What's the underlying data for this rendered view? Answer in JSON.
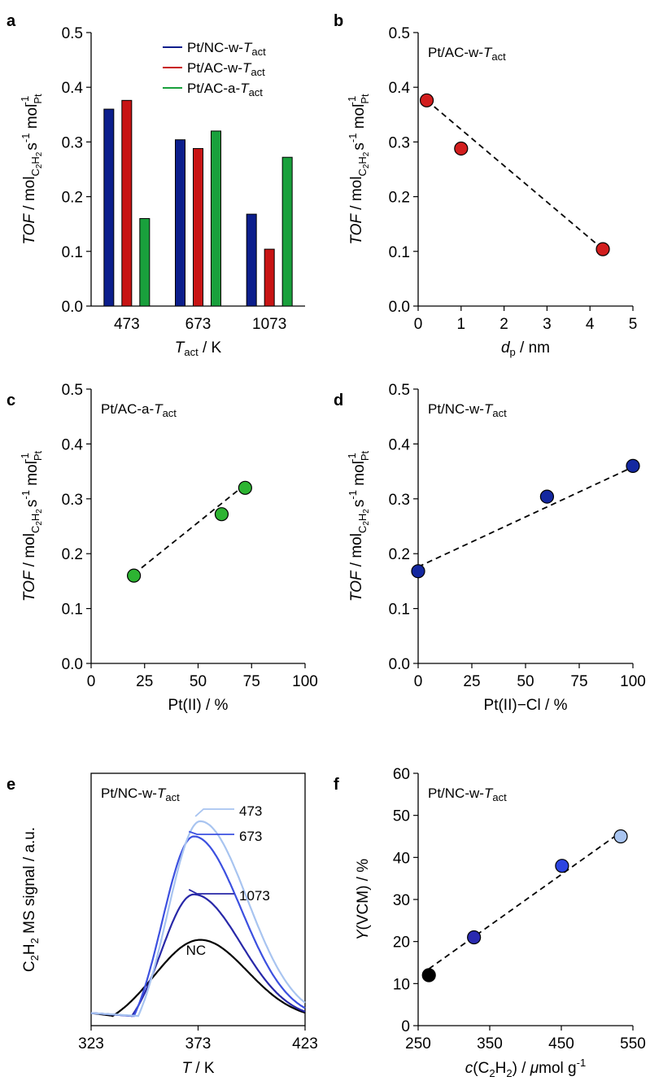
{
  "figure": {
    "panels": [
      "a",
      "b",
      "c",
      "d",
      "e",
      "f"
    ]
  },
  "chart_data": [
    {
      "panel": "a",
      "type": "bar",
      "categories": [
        "473",
        "673",
        "1073"
      ],
      "series": [
        {
          "name": "Pt/NC-w-T_act",
          "color": "#0c1e8c",
          "values": [
            0.36,
            0.304,
            0.168
          ]
        },
        {
          "name": "Pt/AC-w-T_act",
          "color": "#c81414",
          "values": [
            0.376,
            0.288,
            0.104
          ]
        },
        {
          "name": "Pt/AC-a-T_act",
          "color": "#19a03c",
          "values": [
            0.16,
            0.32,
            0.272
          ]
        }
      ],
      "ylim": [
        0,
        0.5
      ],
      "yticks": [
        "0.0",
        "0.1",
        "0.2",
        "0.3",
        "0.4",
        "0.5"
      ],
      "xlabel": "T_act / K",
      "ylabel": "TOF / mol_C2H2 s^-1 mol_Pt^-1",
      "legend_position": "top-right"
    },
    {
      "panel": "b",
      "type": "scatter",
      "title": "Pt/AC-w-T_act",
      "x": [
        0.2,
        1.0,
        4.3
      ],
      "y": [
        0.376,
        0.288,
        0.104
      ],
      "marker_color": "#d21e1e",
      "fit_line": {
        "x": [
          0.2,
          4.3
        ],
        "y": [
          0.376,
          0.104
        ],
        "style": "dashed"
      },
      "xlim": [
        0,
        5
      ],
      "ylim": [
        0,
        0.5
      ],
      "xticks": [
        "0",
        "1",
        "2",
        "3",
        "4",
        "5"
      ],
      "yticks": [
        "0.0",
        "0.1",
        "0.2",
        "0.3",
        "0.4",
        "0.5"
      ],
      "xlabel": "d_p / nm",
      "ylabel": "TOF / mol_C2H2 s^-1 mol_Pt^-1"
    },
    {
      "panel": "c",
      "type": "scatter",
      "title": "Pt/AC-a-T_act",
      "x": [
        20,
        61,
        72
      ],
      "y": [
        0.16,
        0.272,
        0.32
      ],
      "marker_color": "#2db432",
      "fit_line": {
        "x": [
          20,
          72
        ],
        "y": [
          0.163,
          0.326
        ],
        "style": "dashed"
      },
      "xlim": [
        0,
        100
      ],
      "ylim": [
        0,
        0.5
      ],
      "xticks": [
        "0",
        "25",
        "50",
        "75",
        "100"
      ],
      "yticks": [
        "0.0",
        "0.1",
        "0.2",
        "0.3",
        "0.4",
        "0.5"
      ],
      "xlabel": "Pt(II) / %",
      "ylabel": "TOF / mol_C2H2 s^-1 mol_Pt^-1"
    },
    {
      "panel": "d",
      "type": "scatter",
      "title": "Pt/NC-w-T_act",
      "x": [
        0,
        60,
        100
      ],
      "y": [
        0.168,
        0.304,
        0.36
      ],
      "marker_color": "#1428a0",
      "fit_line": {
        "x": [
          0,
          100
        ],
        "y": [
          0.176,
          0.358
        ],
        "style": "dashed"
      },
      "xlim": [
        0,
        100
      ],
      "ylim": [
        0,
        0.5
      ],
      "xticks": [
        "0",
        "25",
        "50",
        "75",
        "100"
      ],
      "yticks": [
        "0.0",
        "0.1",
        "0.2",
        "0.3",
        "0.4",
        "0.5"
      ],
      "xlabel": "Pt(II)−Cl / %",
      "ylabel": "TOF / mol_C2H2 s^-1 mol_Pt^-1"
    },
    {
      "panel": "e",
      "type": "line",
      "title": "Pt/NC-w-T_act",
      "xlim": [
        323,
        423
      ],
      "xticks": [
        "323",
        "373",
        "423"
      ],
      "xlabel": "T / K",
      "ylabel": "C2H2 MS signal / a.u.",
      "baseline": 0.05,
      "series": [
        {
          "name": "473",
          "color": "#a8c4f0",
          "peak_x": 374,
          "peak_height": 0.81,
          "onset_x": 345
        },
        {
          "name": "673",
          "color": "#3c50e0",
          "peak_x": 371,
          "peak_height": 0.75,
          "onset_x": 343
        },
        {
          "name": "1073",
          "color": "#2828a8",
          "peak_x": 371,
          "peak_height": 0.52,
          "onset_x": 342
        },
        {
          "name": "NC",
          "color": "#000000",
          "peak_x": 374,
          "peak_height": 0.34,
          "onset_x": 333
        }
      ],
      "curve_labels": [
        "473",
        "673",
        "1073",
        "NC"
      ]
    },
    {
      "panel": "f",
      "type": "scatter",
      "title": "Pt/NC-w-T_act",
      "x": [
        265,
        328,
        451,
        533
      ],
      "y": [
        12,
        21,
        38,
        45
      ],
      "marker_colors": [
        "#000000",
        "#2a2ab0",
        "#2c44e0",
        "#a8c4f0"
      ],
      "fit_line": {
        "x": [
          265,
          533
        ],
        "y": [
          13.5,
          46
        ],
        "style": "dashed"
      },
      "xlim": [
        250,
        550
      ],
      "ylim": [
        0,
        60
      ],
      "xticks": [
        "250",
        "350",
        "450",
        "550"
      ],
      "yticks": [
        "0",
        "10",
        "20",
        "30",
        "40",
        "50",
        "60"
      ],
      "xlabel": "c(C2H2) / μmol g^-1",
      "ylabel": "Y(VCM) / %"
    }
  ]
}
